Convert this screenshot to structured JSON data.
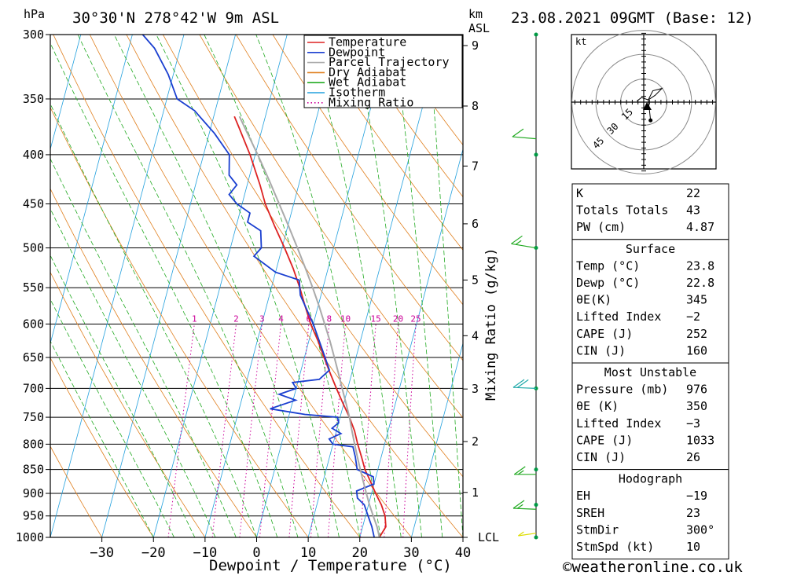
{
  "header": {
    "location": "30°30'N  278°42'W  9m  ASL",
    "datetime": "23.08.2021  09GMT  (Base: 12)",
    "hpa_unit": "hPa",
    "km_unit": "km",
    "asl_unit": "ASL"
  },
  "colors": {
    "temperature": "#dd2222",
    "dewpoint": "#1a3fd0",
    "parcel": "#aaaaaa",
    "dry_adiabat": "#e08020",
    "wet_adiabat": "#22aa22",
    "isotherm": "#22a0dd",
    "mixing_ratio": "#cc0099",
    "wind_staff": "#009944"
  },
  "legend": {
    "items": [
      {
        "label": "Temperature",
        "color": "#dd2222",
        "style": "solid"
      },
      {
        "label": "Dewpoint",
        "color": "#1a3fd0",
        "style": "solid"
      },
      {
        "label": "Parcel Trajectory",
        "color": "#aaaaaa",
        "style": "solid"
      },
      {
        "label": "Dry Adiabat",
        "color": "#e08020",
        "style": "solid"
      },
      {
        "label": "Wet Adiabat",
        "color": "#22aa22",
        "style": "solid"
      },
      {
        "label": "Isotherm",
        "color": "#22a0dd",
        "style": "solid"
      },
      {
        "label": "Mixing Ratio",
        "color": "#cc0099",
        "style": "dotted"
      }
    ]
  },
  "chart_data": {
    "type": "line",
    "xlabel": "Dewpoint / Temperature (°C)",
    "ylabel_right": "Mixing Ratio (g/kg)",
    "xlim": [
      -40,
      40
    ],
    "ylim_hpa": [
      1000,
      300
    ],
    "x_ticks": [
      -30,
      -20,
      -10,
      0,
      10,
      20,
      30,
      40
    ],
    "pressure_levels": [
      300,
      350,
      400,
      450,
      500,
      550,
      600,
      650,
      700,
      750,
      800,
      850,
      900,
      950,
      1000
    ],
    "km_ticks": [
      {
        "label": "9",
        "km": 9
      },
      {
        "label": "8",
        "km": 8
      },
      {
        "label": "7",
        "km": 7
      },
      {
        "label": "6",
        "km": 6
      },
      {
        "label": "5",
        "km": 5
      },
      {
        "label": "4",
        "km": 4
      },
      {
        "label": "3",
        "km": 3
      },
      {
        "label": "2",
        "km": 2
      },
      {
        "label": "1",
        "km": 1
      },
      {
        "label": "LCL",
        "km": 0
      }
    ],
    "km_tick_pressures": [
      308,
      356,
      411,
      472,
      540,
      617,
      701,
      795,
      898,
      1000
    ],
    "mixing_ratio_labels": [
      "1",
      "2",
      "3",
      "4",
      "6",
      "8",
      "10",
      "15",
      "20",
      "25"
    ],
    "mixing_ratio_values": [
      1,
      2,
      3,
      4,
      6,
      8,
      10,
      15,
      20,
      25
    ],
    "series": [
      {
        "name": "Temperature",
        "points": [
          [
            1000,
            23.8
          ],
          [
            975,
            24.5
          ],
          [
            950,
            23.8
          ],
          [
            925,
            22.5
          ],
          [
            900,
            20.8
          ],
          [
            875,
            19.2
          ],
          [
            850,
            17.5
          ],
          [
            825,
            16.2
          ],
          [
            800,
            14.8
          ],
          [
            775,
            13.5
          ],
          [
            750,
            11.8
          ],
          [
            725,
            9.8
          ],
          [
            700,
            7.8
          ],
          [
            675,
            5.8
          ],
          [
            650,
            3.8
          ],
          [
            625,
            1.8
          ],
          [
            600,
            -0.5
          ],
          [
            575,
            -2.5
          ],
          [
            550,
            -4.5
          ],
          [
            525,
            -6.8
          ],
          [
            500,
            -9.5
          ],
          [
            475,
            -12.5
          ],
          [
            450,
            -15.5
          ],
          [
            430,
            -17.5
          ],
          [
            400,
            -21.0
          ],
          [
            375,
            -24.5
          ],
          [
            365,
            -26.0
          ]
        ]
      },
      {
        "name": "Dewpoint",
        "points": [
          [
            1000,
            22.8
          ],
          [
            975,
            21.8
          ],
          [
            950,
            20.5
          ],
          [
            925,
            19.2
          ],
          [
            910,
            17.5
          ],
          [
            895,
            17.0
          ],
          [
            880,
            20.0
          ],
          [
            865,
            19.5
          ],
          [
            850,
            16.0
          ],
          [
            825,
            15.0
          ],
          [
            805,
            14.0
          ],
          [
            800,
            10.0
          ],
          [
            790,
            9.0
          ],
          [
            780,
            11.0
          ],
          [
            770,
            9.0
          ],
          [
            760,
            10.0
          ],
          [
            750,
            9.5
          ],
          [
            745,
            3.0
          ],
          [
            735,
            -4.0
          ],
          [
            720,
            0.5
          ],
          [
            710,
            -3.0
          ],
          [
            700,
            0.0
          ],
          [
            690,
            -1.0
          ],
          [
            685,
            4.0
          ],
          [
            670,
            5.5
          ],
          [
            650,
            4.0
          ],
          [
            600,
            0.0
          ],
          [
            560,
            -4.0
          ],
          [
            540,
            -5.0
          ],
          [
            530,
            -10.0
          ],
          [
            510,
            -15.0
          ],
          [
            500,
            -14.0
          ],
          [
            480,
            -15.0
          ],
          [
            470,
            -18.0
          ],
          [
            460,
            -18.0
          ],
          [
            450,
            -21.0
          ],
          [
            440,
            -23.0
          ],
          [
            430,
            -22.0
          ],
          [
            420,
            -24.0
          ],
          [
            400,
            -25.0
          ],
          [
            380,
            -29.0
          ],
          [
            360,
            -34.0
          ],
          [
            350,
            -38.0
          ],
          [
            330,
            -41.0
          ],
          [
            310,
            -45.0
          ],
          [
            300,
            -48.0
          ]
        ]
      },
      {
        "name": "Parcel Trajectory",
        "points": [
          [
            1000,
            23.8
          ],
          [
            975,
            22.8
          ],
          [
            950,
            21.5
          ],
          [
            925,
            20.2
          ],
          [
            900,
            19.0
          ],
          [
            875,
            17.8
          ],
          [
            850,
            16.6
          ],
          [
            825,
            15.4
          ],
          [
            800,
            14.2
          ],
          [
            775,
            13.0
          ],
          [
            750,
            11.8
          ],
          [
            725,
            10.4
          ],
          [
            700,
            8.9
          ],
          [
            675,
            7.4
          ],
          [
            650,
            5.8
          ],
          [
            625,
            4.1
          ],
          [
            600,
            2.2
          ],
          [
            575,
            0.2
          ],
          [
            550,
            -2.0
          ],
          [
            525,
            -4.4
          ],
          [
            500,
            -7.0
          ],
          [
            475,
            -9.8
          ],
          [
            450,
            -12.8
          ],
          [
            425,
            -16.0
          ],
          [
            400,
            -19.5
          ],
          [
            375,
            -23.4
          ],
          [
            365,
            -25.0
          ]
        ]
      }
    ]
  },
  "hodograph": {
    "unit": "kt",
    "ring_labels": [
      "15",
      "30",
      "45"
    ],
    "ring_speeds": [
      15,
      30,
      45
    ],
    "trace_uv": [
      [
        -3,
        0.5
      ],
      [
        -1,
        2
      ],
      [
        2,
        1
      ],
      [
        4,
        5
      ],
      [
        8,
        6
      ],
      [
        5,
        3
      ],
      [
        2,
        1
      ],
      [
        3,
        -8
      ]
    ]
  },
  "indices": {
    "top": [
      {
        "label": "K",
        "value": "22"
      },
      {
        "label": "Totals Totals",
        "value": "43"
      },
      {
        "label": "PW (cm)",
        "value": "4.87"
      }
    ],
    "surface": {
      "title": "Surface",
      "rows": [
        {
          "label": "Temp (°C)",
          "value": "23.8"
        },
        {
          "label": "Dewp (°C)",
          "value": "22.8"
        },
        {
          "label": "θE(K)",
          "value": "345"
        },
        {
          "label": "Lifted Index",
          "value": "−2"
        },
        {
          "label": "CAPE (J)",
          "value": "252"
        },
        {
          "label": "CIN (J)",
          "value": "160"
        }
      ]
    },
    "most_unstable": {
      "title": "Most Unstable",
      "rows": [
        {
          "label": "Pressure (mb)",
          "value": "976"
        },
        {
          "label": "θE (K)",
          "value": "350"
        },
        {
          "label": "Lifted Index",
          "value": "−3"
        },
        {
          "label": "CAPE (J)",
          "value": "1033"
        },
        {
          "label": "CIN (J)",
          "value": "26"
        }
      ]
    },
    "hodograph_box": {
      "title": "Hodograph",
      "rows": [
        {
          "label": "EH",
          "value": "−19"
        },
        {
          "label": "SREH",
          "value": "23"
        },
        {
          "label": "StmDir",
          "value": "300°"
        },
        {
          "label": "StmSpd (kt)",
          "value": "10"
        }
      ]
    }
  },
  "wind_profile": {
    "pressures": [
      300,
      400,
      500,
      700,
      850,
      925,
      1000
    ],
    "barbs": [
      {
        "p": 385,
        "dir": 250,
        "kt": 12,
        "color": "#22aa22"
      },
      {
        "p": 500,
        "dir": 260,
        "kt": 15,
        "color": "#22aa22"
      },
      {
        "p": 700,
        "dir": 245,
        "kt": 20,
        "color": "#22aaaa"
      },
      {
        "p": 860,
        "dir": 240,
        "kt": 15,
        "color": "#22aa22"
      },
      {
        "p": 935,
        "dir": 245,
        "kt": 15,
        "color": "#22aa22"
      },
      {
        "p": 990,
        "dir": 225,
        "kt": 7,
        "color": "#dddd00"
      }
    ]
  },
  "footer": {
    "copyright": "©weatheronline.co.uk"
  }
}
